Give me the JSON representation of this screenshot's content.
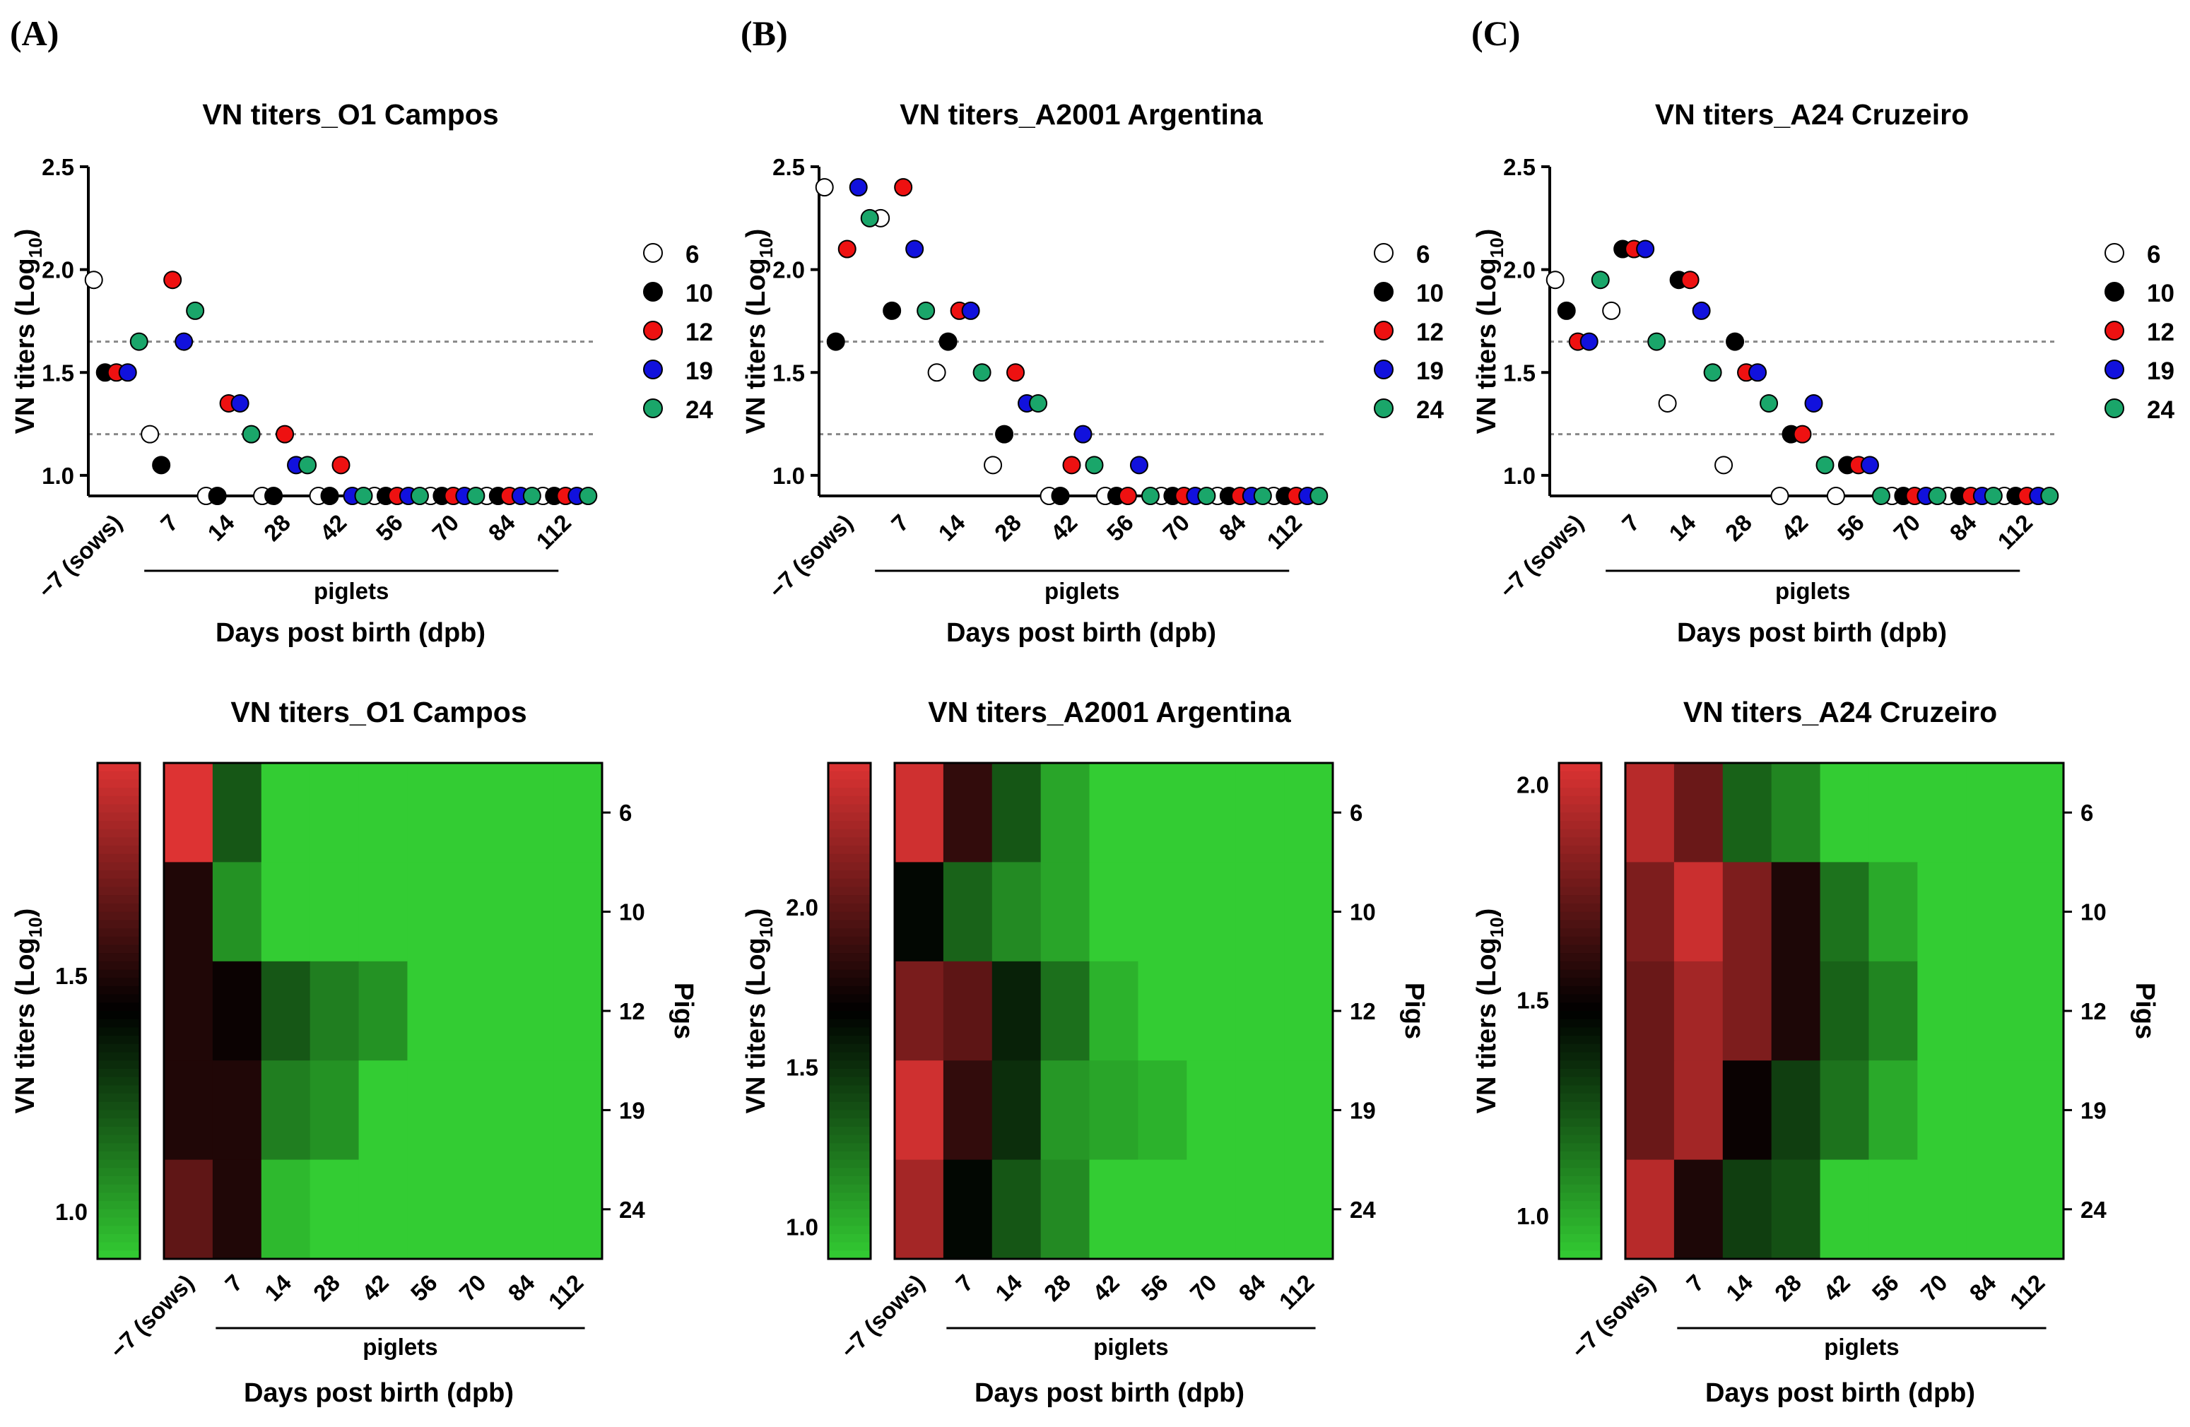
{
  "figure": {
    "panel_labels": [
      "(A)",
      "(B)",
      "(C)"
    ],
    "pig_ids": [
      "6",
      "10",
      "12",
      "19",
      "24"
    ],
    "pig_colors": {
      "6": "#ffffff",
      "10": "#000000",
      "12": "#ee1111",
      "19": "#1111dd",
      "24": "#1aa66a"
    },
    "dot_ylabel_main": "VN titers (Log",
    "dot_ylabel_sub": "10",
    "dot_ylabel_close": ")",
    "xlabel": "Days post birth (dpb)",
    "piglets_label": "piglets",
    "x_ticks": [
      "−7 (sows)",
      "7",
      "14",
      "28",
      "42",
      "56",
      "70",
      "84",
      "112"
    ],
    "heatmap_right_label": "Pigs",
    "heatmap_color_scale": {
      "low": "#33cc33",
      "mid": "#000000",
      "high": "#dd3333"
    }
  },
  "chart_data": [
    {
      "type": "scatter",
      "panel": "(A)",
      "title": "VN titers_O1 Campos",
      "ylim": [
        0.9,
        2.5
      ],
      "y_ticks": [
        "1.0",
        "1.5",
        "2.0",
        "2.5"
      ],
      "y_tick_values": [
        1.0,
        1.5,
        2.0,
        2.5
      ],
      "thresholds": [
        1.65,
        1.2
      ],
      "categories": [
        "-7 (sows)",
        "7",
        "14",
        "28",
        "42",
        "56",
        "70",
        "84",
        "112"
      ],
      "series": [
        {
          "name": "6",
          "values": [
            1.95,
            1.2,
            0.9,
            0.9,
            0.9,
            0.9,
            0.9,
            0.9,
            0.9
          ]
        },
        {
          "name": "10",
          "values": [
            1.5,
            1.05,
            0.9,
            0.9,
            0.9,
            0.9,
            0.9,
            0.9,
            0.9
          ]
        },
        {
          "name": "12",
          "values": [
            1.5,
            1.95,
            1.35,
            1.2,
            1.05,
            0.9,
            0.9,
            0.9,
            0.9
          ]
        },
        {
          "name": "19",
          "values": [
            1.5,
            1.65,
            1.35,
            1.05,
            0.9,
            0.9,
            0.9,
            0.9,
            0.9
          ]
        },
        {
          "name": "24",
          "values": [
            1.65,
            1.8,
            1.2,
            1.05,
            0.9,
            0.9,
            0.9,
            0.9,
            0.9
          ]
        }
      ]
    },
    {
      "type": "scatter",
      "panel": "(B)",
      "title": "VN titers_A2001 Argentina",
      "ylim": [
        0.9,
        2.5
      ],
      "y_ticks": [
        "1.0",
        "1.5",
        "2.0",
        "2.5"
      ],
      "y_tick_values": [
        1.0,
        1.5,
        2.0,
        2.5
      ],
      "thresholds": [
        1.65,
        1.2
      ],
      "categories": [
        "-7 (sows)",
        "7",
        "14",
        "28",
        "42",
        "56",
        "70",
        "84",
        "112"
      ],
      "series": [
        {
          "name": "6",
          "values": [
            2.4,
            2.25,
            1.5,
            1.05,
            0.9,
            0.9,
            0.9,
            0.9,
            0.9
          ]
        },
        {
          "name": "10",
          "values": [
            1.65,
            1.8,
            1.65,
            1.2,
            0.9,
            0.9,
            0.9,
            0.9,
            0.9
          ]
        },
        {
          "name": "12",
          "values": [
            2.1,
            2.4,
            1.8,
            1.5,
            1.05,
            0.9,
            0.9,
            0.9,
            0.9
          ]
        },
        {
          "name": "19",
          "values": [
            2.4,
            2.1,
            1.8,
            1.35,
            1.2,
            1.05,
            0.9,
            0.9,
            0.9
          ]
        },
        {
          "name": "24",
          "values": [
            2.25,
            1.8,
            1.5,
            1.35,
            1.05,
            0.9,
            0.9,
            0.9,
            0.9
          ]
        }
      ]
    },
    {
      "type": "scatter",
      "panel": "(C)",
      "title": "VN titers_A24 Cruzeiro",
      "ylim": [
        0.9,
        2.5
      ],
      "y_ticks": [
        "1.0",
        "1.5",
        "2.0",
        "2.5"
      ],
      "y_tick_values": [
        1.0,
        1.5,
        2.0,
        2.5
      ],
      "thresholds": [
        1.65,
        1.2
      ],
      "categories": [
        "-7 (sows)",
        "7",
        "14",
        "28",
        "42",
        "56",
        "70",
        "84",
        "112"
      ],
      "series": [
        {
          "name": "6",
          "values": [
            1.95,
            1.8,
            1.35,
            1.05,
            0.9,
            0.9,
            0.9,
            0.9,
            0.9
          ]
        },
        {
          "name": "10",
          "values": [
            1.8,
            2.1,
            1.95,
            1.65,
            1.2,
            1.05,
            0.9,
            0.9,
            0.9
          ]
        },
        {
          "name": "12",
          "values": [
            1.65,
            2.1,
            1.95,
            1.5,
            1.2,
            1.05,
            0.9,
            0.9,
            0.9
          ]
        },
        {
          "name": "19",
          "values": [
            1.65,
            2.1,
            1.8,
            1.5,
            1.35,
            1.05,
            0.9,
            0.9,
            0.9
          ]
        },
        {
          "name": "24",
          "values": [
            1.95,
            1.65,
            1.5,
            1.35,
            1.05,
            0.9,
            0.9,
            0.9,
            0.9
          ]
        }
      ]
    },
    {
      "type": "heatmap",
      "panel": "(A)",
      "title": "VN titers_O1 Campos",
      "colorbar_range": [
        0.9,
        1.95
      ],
      "colorbar_ticks": [
        "1.0",
        "1.5"
      ],
      "colorbar_tick_values": [
        1.0,
        1.5
      ],
      "x_categories": [
        "-7 (sows)",
        "7",
        "14",
        "28",
        "42",
        "56",
        "70",
        "84",
        "112"
      ],
      "y_categories": [
        "6",
        "10",
        "12",
        "19",
        "24"
      ],
      "values": [
        [
          1.95,
          1.2,
          0.9,
          0.9,
          0.9,
          0.9,
          0.9,
          0.9,
          0.9
        ],
        [
          1.5,
          1.05,
          0.9,
          0.9,
          0.9,
          0.9,
          0.9,
          0.9,
          0.9
        ],
        [
          1.5,
          1.45,
          1.2,
          1.1,
          1.05,
          0.9,
          0.9,
          0.9,
          0.9
        ],
        [
          1.5,
          1.5,
          1.1,
          1.05,
          0.9,
          0.9,
          0.9,
          0.9,
          0.9
        ],
        [
          1.65,
          1.5,
          0.95,
          0.9,
          0.9,
          0.9,
          0.9,
          0.9,
          0.9
        ]
      ]
    },
    {
      "type": "heatmap",
      "panel": "(B)",
      "title": "VN titers_A2001 Argentina",
      "colorbar_range": [
        0.9,
        2.45
      ],
      "colorbar_ticks": [
        "1.0",
        "1.5",
        "2.0"
      ],
      "colorbar_tick_values": [
        1.0,
        1.5,
        2.0
      ],
      "x_categories": [
        "-7 (sows)",
        "7",
        "14",
        "28",
        "42",
        "56",
        "70",
        "84",
        "112"
      ],
      "y_categories": [
        "6",
        "10",
        "12",
        "19",
        "24"
      ],
      "values": [
        [
          2.4,
          1.85,
          1.35,
          1.05,
          0.9,
          0.9,
          0.9,
          0.9,
          0.9
        ],
        [
          1.65,
          1.3,
          1.15,
          1.05,
          0.9,
          0.9,
          0.9,
          0.9,
          0.9
        ],
        [
          2.1,
          2.0,
          1.55,
          1.25,
          1.0,
          0.9,
          0.9,
          0.9,
          0.9
        ],
        [
          2.4,
          1.85,
          1.5,
          1.1,
          1.05,
          1.0,
          0.9,
          0.9,
          0.9
        ],
        [
          2.25,
          1.65,
          1.35,
          1.15,
          0.9,
          0.9,
          0.9,
          0.9,
          0.9
        ]
      ]
    },
    {
      "type": "heatmap",
      "panel": "(C)",
      "title": "VN titers_A24 Cruzeiro",
      "colorbar_range": [
        0.9,
        2.05
      ],
      "colorbar_ticks": [
        "1.0",
        "1.5",
        "2.0"
      ],
      "colorbar_tick_values": [
        1.0,
        1.5,
        2.0
      ],
      "x_categories": [
        "-7 (sows)",
        "7",
        "14",
        "28",
        "42",
        "56",
        "70",
        "84",
        "112"
      ],
      "y_categories": [
        "6",
        "10",
        "12",
        "19",
        "24"
      ],
      "values": [
        [
          1.95,
          1.75,
          1.2,
          1.1,
          0.9,
          0.9,
          0.9,
          0.9,
          0.9
        ],
        [
          1.8,
          2.0,
          1.8,
          1.55,
          1.15,
          1.0,
          0.9,
          0.9,
          0.9
        ],
        [
          1.75,
          1.9,
          1.8,
          1.55,
          1.2,
          1.1,
          0.9,
          0.9,
          0.9
        ],
        [
          1.75,
          1.9,
          1.5,
          1.3,
          1.15,
          1.0,
          0.9,
          0.9,
          0.9
        ],
        [
          1.95,
          1.55,
          1.3,
          1.25,
          0.9,
          0.9,
          0.9,
          0.9,
          0.9
        ]
      ]
    }
  ]
}
